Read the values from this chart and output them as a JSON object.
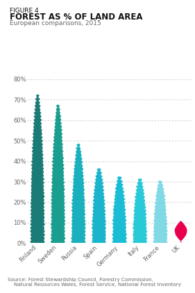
{
  "figure_label": "FIGURE 4",
  "title": "FOREST AS % OF LAND AREA",
  "subtitle": "European comparisons, 2015",
  "source": "Source: Forest Stewardship Council, Forestry Commission,\n    Natural Resources Wales, Forest Service, National Forest Inventory",
  "countries": [
    "Finland",
    "Sweden",
    "Russia",
    "Spain",
    "Germany",
    "Italy",
    "France",
    "UK"
  ],
  "values": [
    73,
    68,
    49,
    37,
    33,
    32,
    31,
    11
  ],
  "colors": [
    "#1b7b76",
    "#1a9e90",
    "#1ab0be",
    "#1ab5cc",
    "#1abdd4",
    "#29cad8",
    "#80d9e5",
    "#e8004c"
  ],
  "ylim": [
    0,
    80
  ],
  "yticks": [
    0,
    10,
    20,
    30,
    40,
    50,
    60,
    70,
    80
  ],
  "background_color": "#ffffff",
  "grid_color": "#bbbbbb",
  "text_color": "#666666",
  "title_color": "#111111"
}
